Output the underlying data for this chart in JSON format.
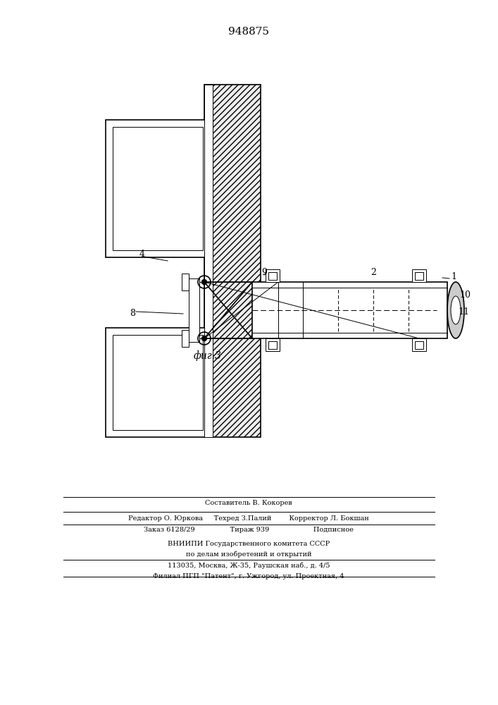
{
  "title": "948875",
  "fig_label": "фиг.3",
  "background_color": "#ffffff",
  "line_color": "#000000",
  "footer_lines": [
    "Составитель В. Кокорев",
    "Редактор О. Юркова     Техред З.Палий        Корректор Л. Бокшан",
    "Заказ 6128/29                Тираж 939                    Подписное",
    "ВНИИПИ Государственного комитета СССР",
    "по делам изобретений и открытий",
    "113035, Москва, Ж-35, Раушская наб., д. 4/5",
    "Филиал ПГП \"Патент\", г. Ужгород, ул. Проектная, 4"
  ]
}
